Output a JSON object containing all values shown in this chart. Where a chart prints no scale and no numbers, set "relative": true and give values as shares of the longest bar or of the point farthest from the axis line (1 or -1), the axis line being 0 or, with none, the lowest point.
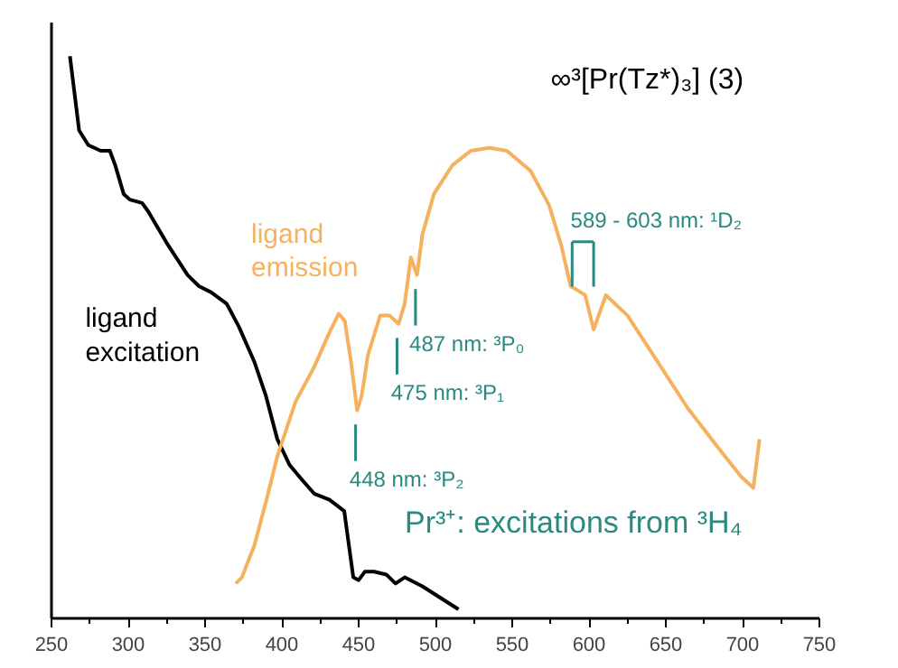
{
  "chart_data": {
    "type": "line",
    "title": "∞³[Pr(Tz*)₃] (3)",
    "relative": true,
    "xlim": [
      250,
      750
    ],
    "xticks": [
      250,
      300,
      350,
      400,
      450,
      500,
      550,
      600,
      650,
      700,
      750
    ],
    "grid": false,
    "series": [
      {
        "name": "ligand excitation",
        "color": "#000000",
        "x": [
          262,
          268,
          274,
          282,
          288,
          291.5,
          297,
          301,
          309,
          313,
          325,
          338.6,
          346,
          354,
          364,
          372,
          382,
          389.6,
          397,
          405,
          413,
          421,
          431,
          440.6,
          446.5,
          450,
          454,
          460,
          468,
          474,
          480,
          491.5,
          503,
          515
        ],
        "values": [
          1.0,
          0.868,
          0.842,
          0.832,
          0.832,
          0.806,
          0.755,
          0.745,
          0.739,
          0.724,
          0.668,
          0.611,
          0.591,
          0.58,
          0.56,
          0.519,
          0.457,
          0.396,
          0.319,
          0.273,
          0.247,
          0.222,
          0.211,
          0.191,
          0.073,
          0.068,
          0.083,
          0.083,
          0.078,
          0.062,
          0.073,
          0.057,
          0.037,
          0.016
        ]
      },
      {
        "name": "ligand emission",
        "color": "#f5b25e",
        "x": [
          370,
          374,
          382,
          390,
          397,
          409,
          421,
          431,
          437,
          441,
          445,
          449,
          452,
          456,
          464,
          470,
          476,
          480,
          484,
          488,
          491.5,
          499,
          511,
          523,
          535,
          546.5,
          562,
          574,
          582,
          588,
          593.5,
          597.5,
          603,
          611,
          625,
          644.5,
          664,
          684,
          699,
          707,
          711
        ],
        "values": [
          0.062,
          0.073,
          0.129,
          0.211,
          0.288,
          0.386,
          0.447,
          0.509,
          0.542,
          0.529,
          0.457,
          0.37,
          0.396,
          0.468,
          0.539,
          0.539,
          0.524,
          0.56,
          0.642,
          0.611,
          0.683,
          0.755,
          0.806,
          0.832,
          0.837,
          0.832,
          0.796,
          0.735,
          0.663,
          0.591,
          0.582,
          0.575,
          0.514,
          0.575,
          0.539,
          0.457,
          0.375,
          0.304,
          0.252,
          0.232,
          0.319
        ]
      }
    ],
    "annotations": [
      {
        "text": "448 nm: ³P₂",
        "x": 448,
        "y": 0.37
      },
      {
        "text": "475 nm: ³P₁",
        "x": 475,
        "y": 0.524
      },
      {
        "text": "487 nm: ³P₀",
        "x": 487,
        "y": 0.611
      },
      {
        "text": "589 - 603 nm: ¹D₂",
        "x": 596,
        "y": 0.59
      },
      "Pr³⁺: excitations from ³H₄"
    ]
  }
}
